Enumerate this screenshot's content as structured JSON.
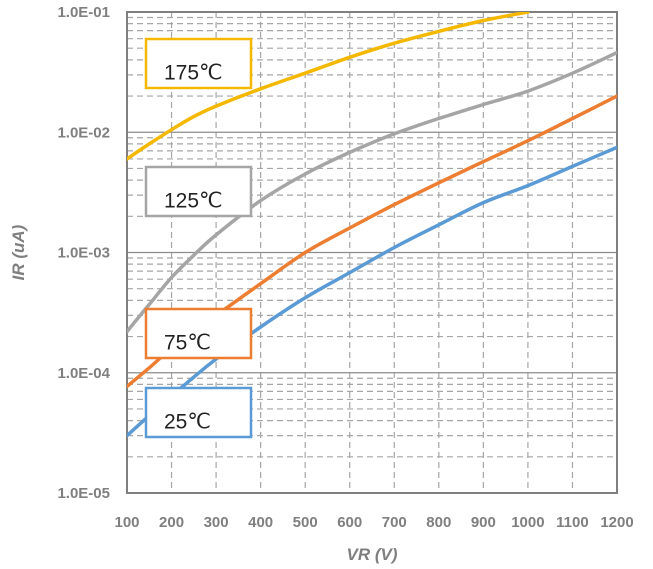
{
  "chart_data": {
    "type": "line",
    "xlabel": "VR (V)",
    "ylabel": "IR (uA)",
    "xlim": [
      100,
      1200
    ],
    "ylim": [
      1e-05,
      0.1
    ],
    "y_scale": "log",
    "grid": true,
    "x_ticks": [
      "100",
      "200",
      "300",
      "400",
      "500",
      "600",
      "700",
      "800",
      "900",
      "1000",
      "1100",
      "1200"
    ],
    "y_ticks": [
      "1.0E-05",
      "1.0E-04",
      "1.0E-03",
      "1.0E-02",
      "1.0E-01"
    ],
    "series": [
      {
        "name": "175℃",
        "color": "#f5b800",
        "x": [
          100,
          150,
          200,
          250,
          300,
          400,
          500,
          600,
          700,
          800,
          900,
          1000
        ],
        "y": [
          0.006,
          0.008,
          0.0105,
          0.0135,
          0.0165,
          0.023,
          0.031,
          0.042,
          0.055,
          0.069,
          0.085,
          0.1
        ]
      },
      {
        "name": "125℃",
        "color": "#a5a5a5",
        "x": [
          100,
          150,
          200,
          250,
          300,
          400,
          500,
          600,
          700,
          800,
          900,
          1000,
          1100,
          1200
        ],
        "y": [
          0.00022,
          0.00037,
          0.00062,
          0.00095,
          0.0014,
          0.0027,
          0.0045,
          0.0068,
          0.0097,
          0.013,
          0.017,
          0.022,
          0.031,
          0.046
        ]
      },
      {
        "name": "75℃",
        "color": "#ed7d31",
        "x": [
          100,
          150,
          200,
          250,
          300,
          400,
          500,
          600,
          700,
          800,
          900,
          1000,
          1100,
          1200
        ],
        "y": [
          7.7e-05,
          0.00011,
          0.00016,
          0.00022,
          0.0003,
          0.00055,
          0.001,
          0.0016,
          0.0025,
          0.0038,
          0.0057,
          0.0085,
          0.013,
          0.02
        ]
      },
      {
        "name": "25℃",
        "color": "#5b9bd5",
        "x": [
          100,
          150,
          200,
          250,
          300,
          400,
          500,
          600,
          700,
          800,
          900,
          1000,
          1100,
          1200
        ],
        "y": [
          3e-05,
          4.4e-05,
          6.4e-05,
          9.2e-05,
          0.00013,
          0.00024,
          0.00042,
          0.00068,
          0.0011,
          0.0017,
          0.0026,
          0.0036,
          0.0052,
          0.0075
        ]
      }
    ]
  }
}
